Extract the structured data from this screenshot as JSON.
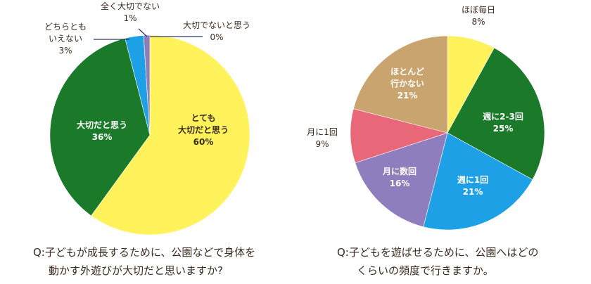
{
  "chart_data": [
    {
      "type": "pie",
      "title": "Q:子どもが成長するために、公園などで身体を動かす外遊びが大切だと思いますか?",
      "categories": [
        "とても大切だと思う",
        "大切だと思う",
        "どちらともいえない",
        "全く大切でない",
        "大切でないと思う"
      ],
      "values": [
        60,
        36,
        3,
        1,
        0
      ],
      "unit": "%",
      "colors": [
        "#fff25a",
        "#1a7a2a",
        "#1ea0e6",
        "#8e7ebd",
        "#8e7ebd"
      ],
      "start_angle": "12 o'clock, clockwise"
    },
    {
      "type": "pie",
      "title": "Q:子どもを遊ばせるために、公園へはどのくらいの頻度で行きますか。",
      "categories": [
        "ほぼ毎日",
        "週に2-3回",
        "週に1回",
        "月に数回",
        "月に1回",
        "ほとんど行かない"
      ],
      "values": [
        8,
        25,
        21,
        16,
        9,
        21
      ],
      "unit": "%",
      "colors": [
        "#fff25a",
        "#1a7a2a",
        "#1ea0e6",
        "#8e7ebd",
        "#e8687a",
        "#c9a46e"
      ],
      "start_angle": "12 o'clock, clockwise"
    }
  ],
  "left": {
    "question_line1": "Q:子どもが成長するために、公園などで身体を",
    "question_line2": "動かす外遊びが大切だと思いますか?",
    "labels": {
      "very_important": {
        "line1": "とても",
        "line2": "大切だと思う",
        "value": "60%"
      },
      "important": {
        "line1": "大切だと思う",
        "value": "36%"
      },
      "neutral": {
        "line1": "どちらとも",
        "line2": "いえない",
        "value": "3%"
      },
      "not_at_all": {
        "line1": "全く大切でない",
        "value": "1%"
      },
      "not_important": {
        "line1": "大切でないと思う",
        "value": "0%"
      }
    }
  },
  "right": {
    "question_line1": "Q:子どもを遊ばせるために、公園へはどの",
    "question_line2": "くらいの頻度で行きますか。",
    "labels": {
      "almost_daily": {
        "line1": "ほぼ毎日",
        "value": "8%"
      },
      "weekly_2_3": {
        "line1": "週に2-3回",
        "value": "25%"
      },
      "weekly_1": {
        "line1": "週に1回",
        "value": "21%"
      },
      "monthly_few": {
        "line1": "月に数回",
        "value": "16%"
      },
      "monthly_1": {
        "line1": "月に1回",
        "value": "9%"
      },
      "rarely": {
        "line1": "ほとんど",
        "line2": "行かない",
        "value": "21%"
      }
    }
  }
}
